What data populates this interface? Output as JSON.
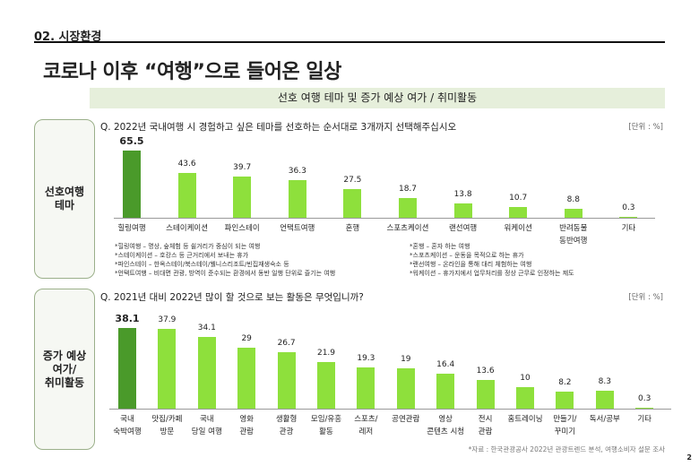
{
  "section": "02. 시장환경",
  "title": "코로나 이후 “여행”으로 들어온 일상",
  "banner": "선호 여행 테마 및 증가 예상 여가 / 취미활동",
  "colors": {
    "highlight": "#4a9a2a",
    "bar": "#8ee03c"
  },
  "chart_data": [
    {
      "type": "bar",
      "side_label": "선호여행\n테마",
      "question": "Q. 2022년 국내여행 시 경험하고 싶은 테마를 선호하는 순서대로 3개까지 선택해주십시오",
      "unit": "[단위 : %]",
      "categories": [
        "힐링여행",
        "스테이케이션",
        "파인스테이",
        "언택트여행",
        "혼행",
        "스포츠케이션",
        "랜선여행",
        "워케이션",
        "반려동물\n동반여행",
        "기타"
      ],
      "values": [
        65.5,
        43.6,
        39.7,
        36.3,
        27.5,
        18.7,
        13.8,
        10.7,
        8.8,
        0.3
      ]
    },
    {
      "type": "bar",
      "side_label": "증가 예상\n여가/\n취미활동",
      "question": "Q. 2021년 대비 2022년 많이 할 것으로 보는 활동은 무엇입니까?",
      "unit": "[단위 : %]",
      "categories": [
        "국내\n숙박여행",
        "맛집/카페\n방문",
        "국내\n당일 여행",
        "영화\n관람",
        "생활형\n관광",
        "모임/유흥\n활동",
        "스포츠/\n레저",
        "공연관람",
        "영상\n콘텐츠 시청",
        "전시\n관람",
        "홈트레이닝",
        "만들기/\n꾸미기",
        "독서/공부",
        "기타"
      ],
      "values": [
        38.1,
        37.9,
        34.1,
        29,
        26.7,
        21.9,
        19.3,
        19,
        16.4,
        13.6,
        10,
        8.2,
        8.3,
        0.3
      ]
    }
  ],
  "notes_left": [
    "*힐링여행 – 명상, 숲체험 등 쉴거리가 중심이 되는 여행",
    "*스테이케이션 – 호캉스 등 근거리에서 보내는 휴가",
    "*파인스테이 – 한옥스테이/북스테이/웰니스리조트/빈집재생숙소 등",
    "*언택트여행 – 비대면 관광, 방역이 준수되는 환경에서 동반 일행 단위로 즐기는 여행"
  ],
  "notes_right": [
    "*혼행 – 혼자 하는 여행",
    "*스포츠케이션 – 운동을 목적으로 하는 휴가",
    "*랜선여행 – 온라인을 통해 대리 체험하는 여행",
    "*워케이션 – 휴가지에서 업무처리를 정상 근무로 인정하는 제도"
  ],
  "source": "*자료 : 한국관광공사 2022년 관광트렌드 분석, 여행소비자 설문 조사",
  "page": "2"
}
